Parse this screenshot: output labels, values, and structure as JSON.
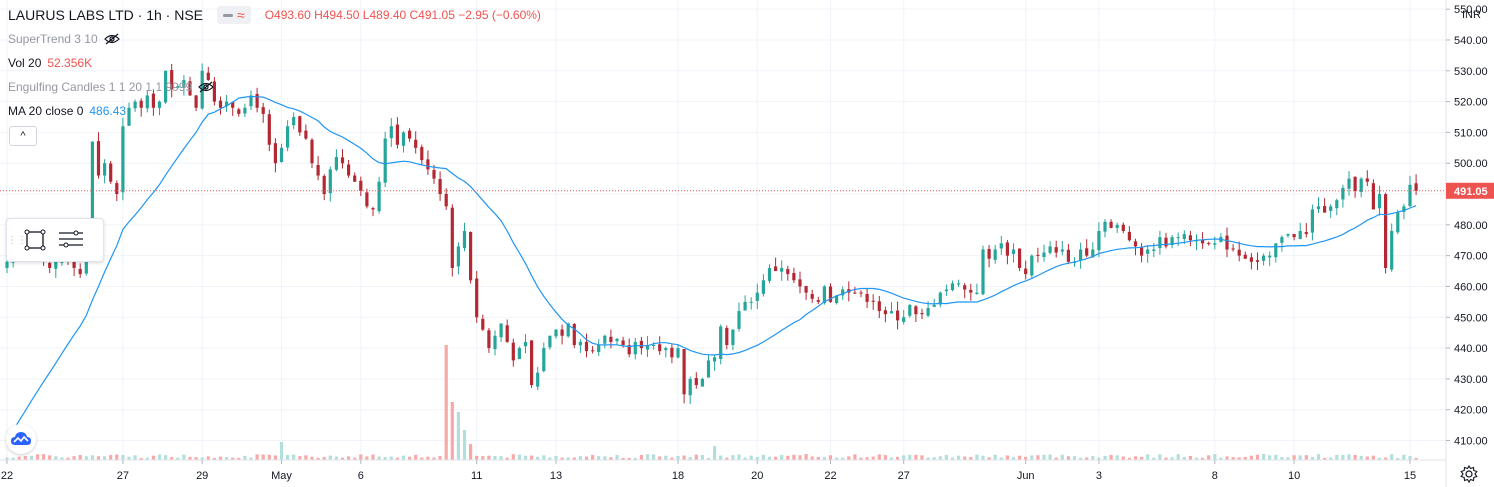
{
  "header": {
    "symbol": "LAURUS LABS LTD · 1h · NSE",
    "ohlc": "O493.60 H494.50 L489.40 C491.05 −2.95 (−0.60%)"
  },
  "indicators": {
    "supertrend": "SuperTrend 3 10",
    "vol_label": "Vol 20",
    "vol_value": "52.356K",
    "engulfing": "Engulfing Candles 1 1 20 1 1 9999",
    "ma_label": "MA 20 close 0",
    "ma_value": "486.43"
  },
  "collapse_glyph": "^",
  "toolbar": {
    "grip": "⋮⋮"
  },
  "colors": {
    "up": "#26a69a",
    "down": "#ef5350",
    "up_body": "#26a69a",
    "down_body": "#b22833",
    "ma": "#2196f3",
    "grid": "#f0f3fa",
    "price_line": "#ef5350",
    "vol_up": "#b2dfdb",
    "vol_down": "#f7a9a7"
  },
  "chart_data": {
    "type": "candlestick",
    "title": "LAURUS LABS LTD · 1h · NSE",
    "currency": "INR",
    "last_price": "491.05",
    "ylim": [
      404,
      552
    ],
    "y_ticks": [
      "410.00",
      "420.00",
      "430.00",
      "440.00",
      "450.00",
      "460.00",
      "470.00",
      "480.00",
      "490.00",
      "500.00",
      "510.00",
      "520.00",
      "530.00",
      "540.00",
      "550.00"
    ],
    "x_ticks": [
      {
        "i": 0,
        "label": "22"
      },
      {
        "i": 19,
        "label": "27"
      },
      {
        "i": 32,
        "label": "29"
      },
      {
        "i": 45,
        "label": "May"
      },
      {
        "i": 58,
        "label": "6"
      },
      {
        "i": 77,
        "label": "11"
      },
      {
        "i": 90,
        "label": "13"
      },
      {
        "i": 110,
        "label": "18"
      },
      {
        "i": 123,
        "label": "20"
      },
      {
        "i": 135,
        "label": "22"
      },
      {
        "i": 147,
        "label": "27"
      },
      {
        "i": 167,
        "label": "Jun"
      },
      {
        "i": 179,
        "label": "3"
      },
      {
        "i": 198,
        "label": "8"
      },
      {
        "i": 211,
        "label": "10"
      },
      {
        "i": 230,
        "label": "15"
      }
    ],
    "close": [
      468,
      476,
      470,
      470,
      472,
      469,
      468,
      466,
      468,
      470,
      468,
      466,
      464,
      476,
      507,
      496,
      500,
      494,
      490,
      512,
      518,
      520,
      518,
      522,
      518,
      520,
      530,
      524,
      525,
      527,
      522,
      518,
      530,
      527,
      520,
      518,
      520,
      518,
      516,
      518,
      522,
      518,
      516,
      506,
      500,
      505,
      512,
      515,
      510,
      508,
      500,
      496,
      490,
      498,
      502,
      500,
      496,
      494,
      491,
      486,
      485,
      494,
      508,
      512,
      506,
      510,
      508,
      505,
      501,
      498,
      495,
      490,
      486,
      466,
      473,
      478,
      462,
      450,
      446,
      440,
      444,
      448,
      442,
      436,
      440,
      442,
      428,
      432,
      440,
      444,
      446,
      444,
      448,
      441,
      442,
      439,
      439,
      441,
      444,
      442,
      443,
      441,
      438,
      442,
      440,
      441,
      441,
      439,
      440,
      437,
      440,
      425,
      430,
      428,
      430,
      436,
      437,
      447,
      441,
      446,
      452,
      455,
      455,
      458,
      462,
      466,
      465,
      466,
      464,
      462,
      460,
      458,
      456,
      455,
      460,
      455,
      457,
      459,
      458,
      458,
      458,
      455,
      455,
      452,
      451,
      452,
      449,
      450,
      454,
      451,
      451,
      453,
      454,
      458,
      459,
      461,
      461,
      459,
      458,
      458,
      472,
      469,
      472,
      474,
      470,
      472,
      466,
      464,
      470,
      470,
      471,
      473,
      471,
      472,
      468,
      468,
      472,
      470,
      472,
      478,
      481,
      479,
      480,
      478,
      475,
      473,
      470,
      472,
      472,
      476,
      473,
      476,
      476,
      477,
      475,
      475,
      474,
      474,
      474,
      476,
      472,
      472,
      470,
      469,
      468,
      468,
      470,
      470,
      474,
      476,
      477,
      476,
      478,
      477,
      485,
      486,
      484,
      486,
      488,
      492,
      495,
      491,
      495,
      494,
      485,
      490,
      466,
      478,
      484,
      486,
      493,
      491.05
    ]
  }
}
